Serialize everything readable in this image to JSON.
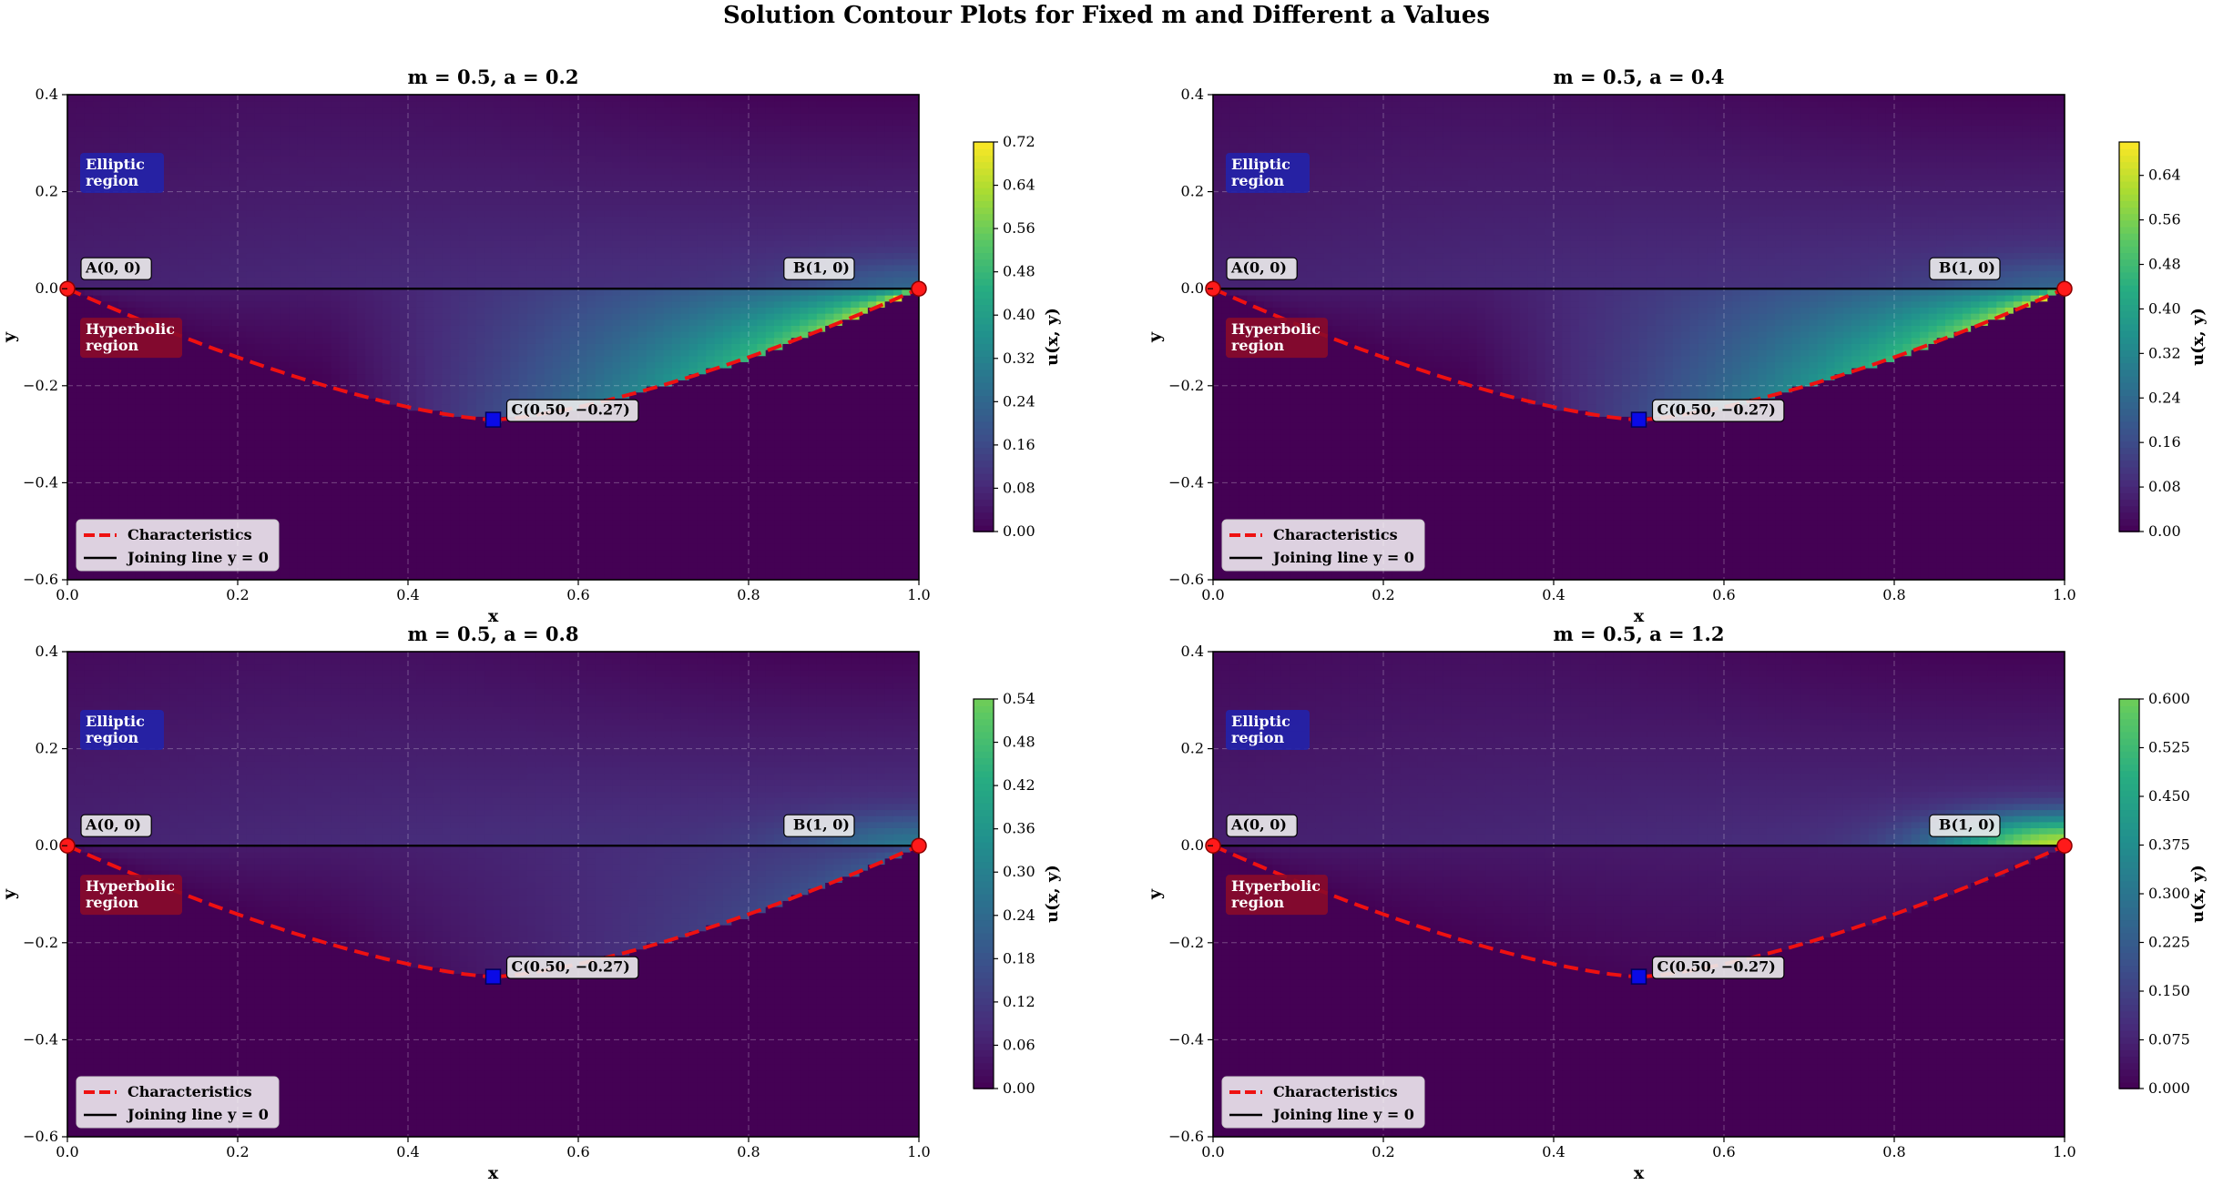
{
  "figure": {
    "title": "Solution Contour Plots for Fixed m and Different a Values"
  },
  "colors": {
    "characteristics": "#ee1111",
    "joining_line": "#000000",
    "endpoint_marker": "#ff1a1a",
    "c_marker": "#0a0ae6",
    "elliptic_badge": "#2222aa",
    "hyperbolic_badge": "#8a0a2a",
    "colormap": [
      "#440154",
      "#472c7a",
      "#3b518b",
      "#2c718e",
      "#21908d",
      "#27ad81",
      "#5cc863",
      "#aadc32",
      "#fde725"
    ]
  },
  "chart_data": [
    {
      "type": "heatmap",
      "title": "m = 0.5,  a = 0.2",
      "xlabel": "x",
      "ylabel": "y",
      "xlim": [
        0.0,
        1.0
      ],
      "ylim": [
        -0.6,
        0.4
      ],
      "xticks": [
        0.0,
        0.2,
        0.4,
        0.6,
        0.8,
        1.0
      ],
      "xtick_labels": [
        "0.0",
        "0.2",
        "0.4",
        "0.6",
        "0.8",
        "1.0"
      ],
      "yticks": [
        0.4,
        0.2,
        0.0,
        -0.2,
        -0.4,
        -0.6
      ],
      "ytick_labels": [
        "0.4",
        "0.2",
        "0.0",
        "−0.2",
        "−0.4",
        "−0.6"
      ],
      "colorbar": {
        "label": "u(x, y)",
        "min": 0.0,
        "max": 0.72,
        "ext": 0.72,
        "ticks": [
          0.0,
          0.08,
          0.16,
          0.24,
          0.32,
          0.4,
          0.48,
          0.56,
          0.64,
          0.72
        ],
        "tick_labels": [
          "0.00",
          "0.08",
          "0.16",
          "0.24",
          "0.32",
          "0.40",
          "0.48",
          "0.56",
          "0.64",
          "0.72"
        ]
      },
      "field_peak": 0.72,
      "upper_peak": 0.12,
      "points": {
        "A": [
          0.0,
          0.0
        ],
        "B": [
          1.0,
          0.0
        ],
        "C": [
          0.5,
          -0.27
        ]
      },
      "labels": {
        "A": "A(0, 0)",
        "B": "B(1, 0)",
        "C": "C(0.50, −0.27)"
      },
      "region_labels": {
        "elliptic": [
          "Elliptic",
          "region"
        ],
        "hyperbolic": [
          "Hyperbolic",
          "region"
        ]
      },
      "legend": {
        "characteristics": "Characteristics",
        "joining": "Joining line y = 0"
      }
    },
    {
      "type": "heatmap",
      "title": "m = 0.5,  a = 0.4",
      "xlabel": "x",
      "ylabel": "y",
      "xlim": [
        0.0,
        1.0
      ],
      "ylim": [
        -0.6,
        0.4
      ],
      "xticks": [
        0.0,
        0.2,
        0.4,
        0.6,
        0.8,
        1.0
      ],
      "xtick_labels": [
        "0.0",
        "0.2",
        "0.4",
        "0.6",
        "0.8",
        "1.0"
      ],
      "yticks": [
        0.4,
        0.2,
        0.0,
        -0.2,
        -0.4,
        -0.6
      ],
      "ytick_labels": [
        "0.4",
        "0.2",
        "0.0",
        "−0.2",
        "−0.4",
        "−0.6"
      ],
      "colorbar": {
        "label": "u(x, y)",
        "min": 0.0,
        "max": 0.7,
        "ext": 0.7,
        "ticks": [
          0.0,
          0.08,
          0.16,
          0.24,
          0.32,
          0.4,
          0.48,
          0.56,
          0.64
        ],
        "tick_labels": [
          "0.00",
          "0.08",
          "0.16",
          "0.24",
          "0.32",
          "0.40",
          "0.48",
          "0.56",
          "0.64"
        ]
      },
      "field_peak": 0.7,
      "upper_peak": 0.11,
      "points": {
        "A": [
          0.0,
          0.0
        ],
        "B": [
          1.0,
          0.0
        ],
        "C": [
          0.5,
          -0.27
        ]
      },
      "labels": {
        "A": "A(0, 0)",
        "B": "B(1, 0)",
        "C": "C(0.50, −0.27)"
      },
      "region_labels": {
        "elliptic": [
          "Elliptic",
          "region"
        ],
        "hyperbolic": [
          "Hyperbolic",
          "region"
        ]
      },
      "legend": {
        "characteristics": "Characteristics",
        "joining": "Joining line y = 0"
      }
    },
    {
      "type": "heatmap",
      "title": "m = 0.5,  a = 0.8",
      "xlabel": "x",
      "ylabel": "y",
      "xlim": [
        0.0,
        1.0
      ],
      "ylim": [
        -0.6,
        0.4
      ],
      "xticks": [
        0.0,
        0.2,
        0.4,
        0.6,
        0.8,
        1.0
      ],
      "xtick_labels": [
        "0.0",
        "0.2",
        "0.4",
        "0.6",
        "0.8",
        "1.0"
      ],
      "yticks": [
        0.4,
        0.2,
        0.0,
        -0.2,
        -0.4,
        -0.6
      ],
      "ytick_labels": [
        "0.4",
        "0.2",
        "0.0",
        "−0.2",
        "−0.4",
        "−0.6"
      ],
      "colorbar": {
        "label": "u(x, y)",
        "min": 0.0,
        "max": 0.54,
        "ext": 0.69,
        "ticks": [
          0.0,
          0.06,
          0.12,
          0.18,
          0.24,
          0.3,
          0.36,
          0.42,
          0.48,
          0.54
        ],
        "tick_labels": [
          "0.00",
          "0.06",
          "0.12",
          "0.18",
          "0.24",
          "0.30",
          "0.36",
          "0.42",
          "0.48",
          "0.54"
        ]
      },
      "field_peak": 0.22,
      "upper_peak": 0.16,
      "points": {
        "A": [
          0.0,
          0.0
        ],
        "B": [
          1.0,
          0.0
        ],
        "C": [
          0.5,
          -0.27
        ]
      },
      "labels": {
        "A": "A(0, 0)",
        "B": "B(1, 0)",
        "C": "C(0.50, −0.27)"
      },
      "region_labels": {
        "elliptic": [
          "Elliptic",
          "region"
        ],
        "hyperbolic": [
          "Hyperbolic",
          "region"
        ]
      },
      "legend": {
        "characteristics": "Characteristics",
        "joining": "Joining line y = 0"
      }
    },
    {
      "type": "heatmap",
      "title": "m = 0.5,  a = 1.2",
      "xlabel": "x",
      "ylabel": "y",
      "xlim": [
        0.0,
        1.0
      ],
      "ylim": [
        -0.6,
        0.4
      ],
      "xticks": [
        0.0,
        0.2,
        0.4,
        0.6,
        0.8,
        1.0
      ],
      "xtick_labels": [
        "0.0",
        "0.2",
        "0.4",
        "0.6",
        "0.8",
        "1.0"
      ],
      "yticks": [
        0.4,
        0.2,
        0.0,
        -0.2,
        -0.4,
        -0.6
      ],
      "ytick_labels": [
        "0.4",
        "0.2",
        "0.0",
        "−0.2",
        "−0.4",
        "−0.6"
      ],
      "colorbar": {
        "label": "u(x, y)",
        "min": 0.0,
        "max": 0.6,
        "ext": 0.77,
        "ticks": [
          0.0,
          0.075,
          0.15,
          0.225,
          0.3,
          0.375,
          0.45,
          0.525,
          0.6
        ],
        "tick_labels": [
          "0.000",
          "0.075",
          "0.150",
          "0.225",
          "0.300",
          "0.375",
          "0.450",
          "0.525",
          "0.600"
        ]
      },
      "field_peak": 0.05,
      "upper_peak": 0.58,
      "points": {
        "A": [
          0.0,
          0.0
        ],
        "B": [
          1.0,
          0.0
        ],
        "C": [
          0.5,
          -0.27
        ]
      },
      "labels": {
        "A": "A(0, 0)",
        "B": "B(1, 0)",
        "C": "C(0.50, −0.27)"
      },
      "region_labels": {
        "elliptic": [
          "Elliptic",
          "region"
        ],
        "hyperbolic": [
          "Hyperbolic",
          "region"
        ]
      },
      "legend": {
        "characteristics": "Characteristics",
        "joining": "Joining line y = 0"
      }
    }
  ]
}
